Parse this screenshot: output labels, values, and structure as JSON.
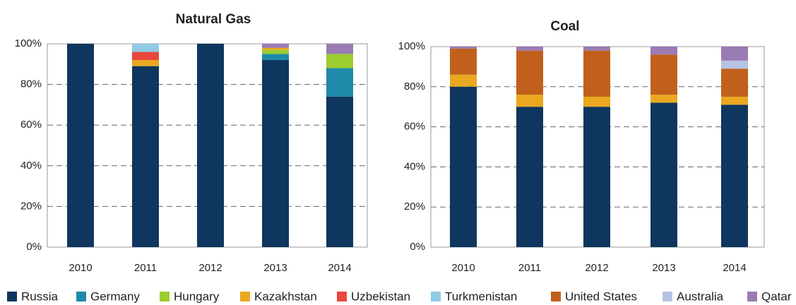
{
  "chart_data": [
    {
      "type": "bar",
      "stacked": true,
      "title": "Natural Gas",
      "categories": [
        "2010",
        "2011",
        "2012",
        "2013",
        "2014"
      ],
      "ylim": [
        0,
        100
      ],
      "yticks": [
        {
          "value": 0,
          "label": "0%"
        },
        {
          "value": 20,
          "label": "20%"
        },
        {
          "value": 40,
          "label": "40%"
        },
        {
          "value": 60,
          "label": "60%"
        },
        {
          "value": 80,
          "label": "80%"
        },
        {
          "value": 100,
          "label": "100%"
        }
      ],
      "grid": true,
      "series": [
        {
          "name": "Russia",
          "color": "#0f365e",
          "values": [
            100,
            89,
            100,
            92,
            74
          ]
        },
        {
          "name": "Germany",
          "color": "#1f8aaa",
          "values": [
            0,
            0,
            0,
            3,
            14
          ]
        },
        {
          "name": "Hungary",
          "color": "#9ccc2e",
          "values": [
            0,
            0,
            0,
            2,
            7
          ]
        },
        {
          "name": "Kazakhstan",
          "color": "#e9a81f",
          "values": [
            0,
            3,
            0,
            1,
            0
          ]
        },
        {
          "name": "Uzbekistan",
          "color": "#e8473f",
          "values": [
            0,
            4,
            0,
            0,
            0
          ]
        },
        {
          "name": "Turkmenistan",
          "color": "#8fcbe3",
          "values": [
            0,
            4,
            0,
            0,
            0
          ]
        },
        {
          "name": "United States",
          "color": "#c0601c",
          "values": [
            0,
            0,
            0,
            0,
            0
          ]
        },
        {
          "name": "Australia",
          "color": "#b7c3e3",
          "values": [
            0,
            0,
            0,
            0,
            0
          ]
        },
        {
          "name": "Qatar",
          "color": "#9a7bb3",
          "values": [
            0,
            0,
            0,
            2,
            5
          ]
        }
      ]
    },
    {
      "type": "bar",
      "stacked": true,
      "title": "Coal",
      "categories": [
        "2010",
        "2011",
        "2012",
        "2013",
        "2014"
      ],
      "ylim": [
        0,
        100
      ],
      "yticks": [
        {
          "value": 0,
          "label": "0%"
        },
        {
          "value": 20,
          "label": "20%"
        },
        {
          "value": 40,
          "label": "40%"
        },
        {
          "value": 60,
          "label": "60%"
        },
        {
          "value": 80,
          "label": "80%"
        },
        {
          "value": 100,
          "label": "100%"
        }
      ],
      "grid": true,
      "series": [
        {
          "name": "Russia",
          "color": "#0f365e",
          "values": [
            80,
            70,
            70,
            72,
            71
          ]
        },
        {
          "name": "Germany",
          "color": "#1f8aaa",
          "values": [
            0,
            0,
            0,
            0,
            0
          ]
        },
        {
          "name": "Hungary",
          "color": "#9ccc2e",
          "values": [
            0,
            0,
            0,
            0,
            0
          ]
        },
        {
          "name": "Kazakhstan",
          "color": "#e9a81f",
          "values": [
            6,
            6,
            5,
            4,
            4
          ]
        },
        {
          "name": "Uzbekistan",
          "color": "#e8473f",
          "values": [
            0,
            0,
            0,
            0,
            0
          ]
        },
        {
          "name": "Turkmenistan",
          "color": "#8fcbe3",
          "values": [
            0,
            0,
            0,
            0,
            0
          ]
        },
        {
          "name": "United States",
          "color": "#c0601c",
          "values": [
            13,
            22,
            23,
            20,
            14
          ]
        },
        {
          "name": "Australia",
          "color": "#b7c3e3",
          "values": [
            0,
            0,
            0,
            0,
            4
          ]
        },
        {
          "name": "Qatar",
          "color": "#9a7bb3",
          "values": [
            1,
            2,
            2,
            4,
            7
          ]
        }
      ]
    }
  ]
}
